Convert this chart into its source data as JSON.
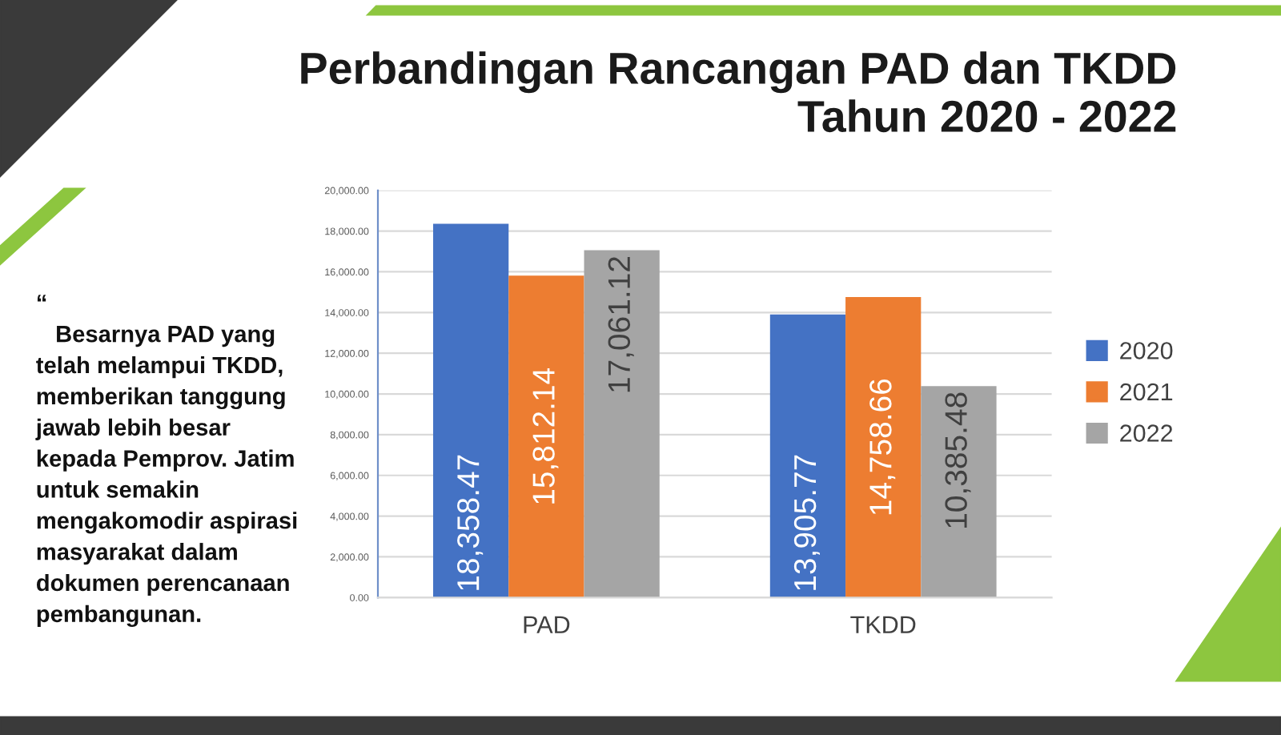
{
  "chart_data": {
    "type": "bar",
    "title": "Perbandingan Rancangan PAD dan TKDD\nTahun 2020 - 2022",
    "categories": [
      "PAD",
      "TKDD"
    ],
    "series": [
      {
        "name": "2020",
        "color": "#4472c4",
        "values": [
          18358.47,
          13905.77
        ],
        "value_labels": [
          "18,358.47",
          "13,905.77"
        ]
      },
      {
        "name": "2021",
        "color": "#ed7d31",
        "values": [
          15812.14,
          14758.66
        ],
        "value_labels": [
          "15,812.14",
          "14,758.66"
        ]
      },
      {
        "name": "2022",
        "color": "#a5a5a5",
        "values": [
          17061.12,
          10385.48
        ],
        "value_labels": [
          "17,061.12",
          "10,385.48"
        ]
      }
    ],
    "ylim": [
      0,
      20000
    ],
    "yticks": [
      {
        "value": 0,
        "label": "0.00"
      },
      {
        "value": 2000,
        "label": "2,000.00"
      },
      {
        "value": 4000,
        "label": "4,000.00"
      },
      {
        "value": 6000,
        "label": "6,000.00"
      },
      {
        "value": 8000,
        "label": "8,000.00"
      },
      {
        "value": 10000,
        "label": "10,000.00"
      },
      {
        "value": 12000,
        "label": "12,000.00"
      },
      {
        "value": 14000,
        "label": "14,000.00"
      },
      {
        "value": 16000,
        "label": "16,000.00"
      },
      {
        "value": 18000,
        "label": "18,000.00"
      },
      {
        "value": 20000,
        "label": "20,000.00"
      }
    ],
    "grid": "y",
    "legend": "right",
    "annotations": [
      "“\n   Besarnya PAD yang\ntelah melampui TKDD,\nmemberikan tanggung\njawab lebih besar\nkepada Pemprov. Jatim\nuntuk semakin\nmengakomodir aspirasi\nmasyarakat dalam\ndokumen perencanaan\npembangunan."
    ]
  }
}
